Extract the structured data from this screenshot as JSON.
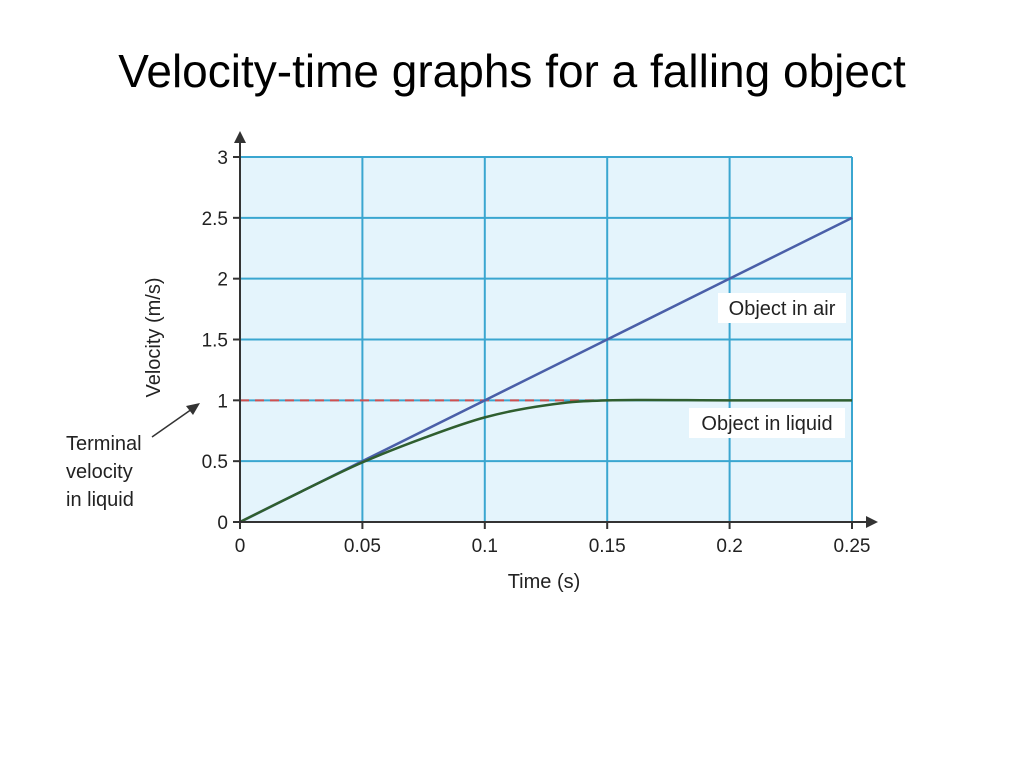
{
  "slide": {
    "title": "Velocity-time graphs for a falling object"
  },
  "chart_data": {
    "type": "line",
    "xlabel": "Time (s)",
    "ylabel": "Velocity (m/s)",
    "xlim": [
      0,
      0.25
    ],
    "ylim": [
      0,
      3
    ],
    "x_ticks": [
      "0",
      "0.05",
      "0.1",
      "0.15",
      "0.2",
      "0.25"
    ],
    "y_ticks": [
      "0",
      "0.5",
      "1",
      "1.5",
      "2",
      "2.5",
      "3"
    ],
    "grid": true,
    "series": [
      {
        "name": "Object in air",
        "color": "#4a5fa8",
        "x": [
          0,
          0.05,
          0.1,
          0.15,
          0.2,
          0.25
        ],
        "y": [
          0,
          0.5,
          1.0,
          1.5,
          2.0,
          2.5
        ]
      },
      {
        "name": "Object in liquid",
        "color": "#2f5e2f",
        "x": [
          0,
          0.025,
          0.05,
          0.075,
          0.1,
          0.125,
          0.15,
          0.2,
          0.25
        ],
        "y": [
          0,
          0.25,
          0.49,
          0.69,
          0.86,
          0.96,
          1.0,
          1.0,
          1.0
        ]
      }
    ],
    "reference_line": {
      "y": 1,
      "style": "dashed",
      "color": "#d05050"
    },
    "annotations": {
      "terminal_velocity": [
        "Terminal",
        "velocity",
        "in liquid"
      ]
    },
    "colors": {
      "plot_background": "#e4f4fc",
      "grid": "#3aa6d0",
      "axis": "#333333"
    }
  }
}
